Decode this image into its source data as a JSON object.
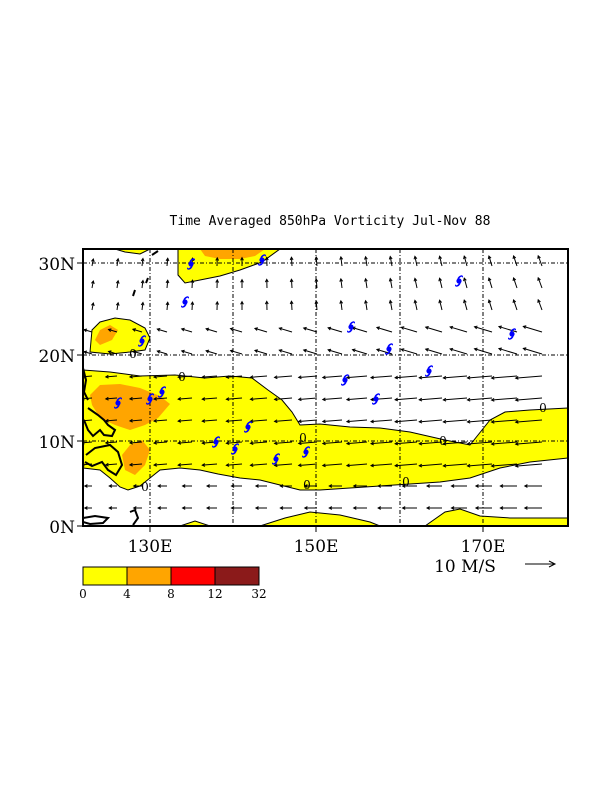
{
  "title": "Time Averaged 850hPa Vorticity  Jul-Nov  88",
  "lat_labels": [
    "30N",
    "20N",
    "10N",
    "0N"
  ],
  "lon_labels": [
    "130E",
    "150E",
    "170E"
  ],
  "vector_scale": {
    "label": "10 M/S",
    "value_ms": 10
  },
  "colorbar": {
    "ticks": [
      "0",
      "4",
      "8",
      "12",
      "32"
    ],
    "colors": [
      "#ffff00",
      "#ffa500",
      "#ff0000",
      "#8b1a1a"
    ]
  },
  "contour_labels": [
    "0",
    "0",
    "0",
    "0",
    "0",
    "0",
    "0",
    "0"
  ],
  "colors": {
    "cyclone": "#0000ff",
    "frame": "#000000"
  },
  "storm_symbol_icon": "tropical-cyclone-icon"
}
